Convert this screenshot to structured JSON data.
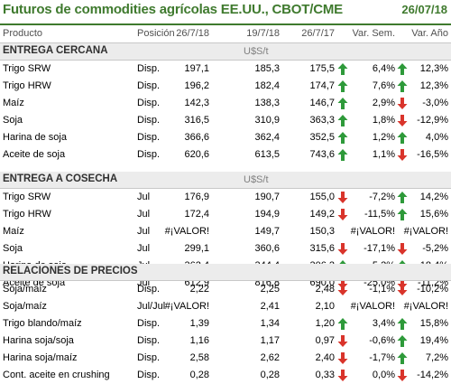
{
  "title": "Futuros de commodities agrícolas EE.UU., CBOT/CME",
  "date": "26/07/18",
  "columns": [
    "Producto",
    "Posición",
    "26/7/18",
    "19/7/18",
    "26/7/17",
    "Var. Sem.",
    "Var. Año"
  ],
  "colors": {
    "accent": "#3f7a2e",
    "up": "#2e9a3a",
    "down": "#d9342b"
  },
  "sections": [
    {
      "title": "ENTREGA CERCANA",
      "unit": "U$S/t",
      "rows": [
        {
          "product": "Trigo SRW",
          "position": "Disp.",
          "v1": "197,1",
          "v2": "185,3",
          "v3": "175,5",
          "ws": "6,4%",
          "w_dir": "up",
          "ys": "12,3%",
          "y_dir": "up"
        },
        {
          "product": "Trigo HRW",
          "position": "Disp.",
          "v1": "196,2",
          "v2": "182,4",
          "v3": "174,7",
          "ws": "7,6%",
          "w_dir": "up",
          "ys": "12,3%",
          "y_dir": "up"
        },
        {
          "product": "Maíz",
          "position": "Disp.",
          "v1": "142,3",
          "v2": "138,3",
          "v3": "146,7",
          "ws": "2,9%",
          "w_dir": "up",
          "ys": "-3,0%",
          "y_dir": "down"
        },
        {
          "product": "Soja",
          "position": "Disp.",
          "v1": "316,5",
          "v2": "310,9",
          "v3": "363,3",
          "ws": "1,8%",
          "w_dir": "up",
          "ys": "-12,9%",
          "y_dir": "down"
        },
        {
          "product": "Harina de soja",
          "position": "Disp.",
          "v1": "366,6",
          "v2": "362,4",
          "v3": "352,5",
          "ws": "1,2%",
          "w_dir": "up",
          "ys": "4,0%",
          "y_dir": "up"
        },
        {
          "product": "Aceite de soja",
          "position": "Disp.",
          "v1": "620,6",
          "v2": "613,5",
          "v3": "743,6",
          "ws": "1,1%",
          "w_dir": "up",
          "ys": "-16,5%",
          "y_dir": "down"
        }
      ]
    },
    {
      "title": "ENTREGA A COSECHA",
      "unit": "U$S/t",
      "rows": [
        {
          "product": "Trigo SRW",
          "position": "Jul",
          "v1": "176,9",
          "v2": "190,7",
          "v3": "155,0",
          "ws": "-7,2%",
          "w_dir": "down",
          "ys": "14,2%",
          "y_dir": "up"
        },
        {
          "product": "Trigo HRW",
          "position": "Jul",
          "v1": "172,4",
          "v2": "194,9",
          "v3": "149,2",
          "ws": "-11,5%",
          "w_dir": "down",
          "ys": "15,6%",
          "y_dir": "up"
        },
        {
          "product": "Maíz",
          "position": "Jul",
          "v1": "#¡VALOR!",
          "v2": "149,7",
          "v3": "150,3",
          "ws": "#¡VALOR!",
          "w_dir": "",
          "ys": "#¡VALOR!",
          "y_dir": ""
        },
        {
          "product": "Soja",
          "position": "Jul",
          "v1": "299,1",
          "v2": "360,6",
          "v3": "315,6",
          "ws": "-17,1%",
          "w_dir": "down",
          "ys": "-5,2%",
          "y_dir": "down"
        },
        {
          "product": "Harina de soja",
          "position": "Jul",
          "v1": "362,4",
          "v2": "344,4",
          "v3": "306,2",
          "ws": "5,2%",
          "w_dir": "up",
          "ys": "18,4%",
          "y_dir": "up"
        },
        {
          "product": "Aceite de soja",
          "position": "Jul",
          "v1": "612,9",
          "v2": "816,8",
          "v3": "690,0",
          "ws": "-25,0%",
          "w_dir": "down",
          "ys": "-11,2%",
          "y_dir": "down"
        }
      ]
    },
    {
      "title": "RELACIONES DE PRECIOS",
      "unit": "",
      "rows": [
        {
          "product": "Soja/maíz",
          "position": "Disp.",
          "v1": "2,22",
          "v2": "2,25",
          "v3": "2,48",
          "ws": "-1,1%",
          "w_dir": "down",
          "ys": "-10,2%",
          "y_dir": "down"
        },
        {
          "product": "Soja/maíz",
          "position": "Jul/Jul",
          "v1": "#¡VALOR!",
          "v2": "2,41",
          "v3": "2,10",
          "ws": "#¡VALOR!",
          "w_dir": "",
          "ys": "#¡VALOR!",
          "y_dir": ""
        },
        {
          "product": "Trigo blando/maíz",
          "position": "Disp.",
          "v1": "1,39",
          "v2": "1,34",
          "v3": "1,20",
          "ws": "3,4%",
          "w_dir": "up",
          "ys": "15,8%",
          "y_dir": "up"
        },
        {
          "product": "Harina soja/soja",
          "position": "Disp.",
          "v1": "1,16",
          "v2": "1,17",
          "v3": "0,97",
          "ws": "-0,6%",
          "w_dir": "down",
          "ys": "19,4%",
          "y_dir": "up"
        },
        {
          "product": "Harina soja/maíz",
          "position": "Disp.",
          "v1": "2,58",
          "v2": "2,62",
          "v3": "2,40",
          "ws": "-1,7%",
          "w_dir": "down",
          "ys": "7,2%",
          "y_dir": "up"
        },
        {
          "product": "Cont. aceite en crushing",
          "position": "Disp.",
          "v1": "0,28",
          "v2": "0,28",
          "v3": "0,33",
          "ws": "0,0%",
          "w_dir": "down",
          "ys": "-14,2%",
          "y_dir": "down"
        }
      ]
    }
  ]
}
